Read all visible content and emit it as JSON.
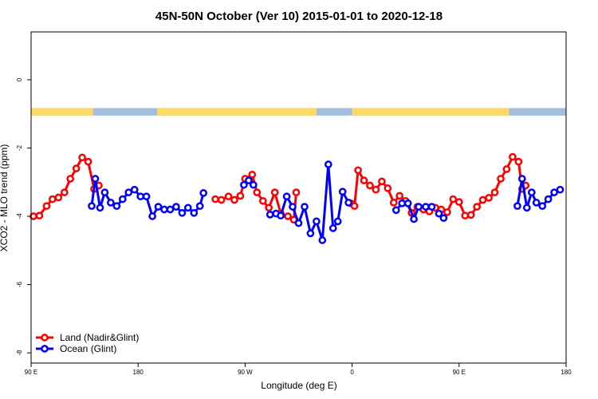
{
  "chart_data": {
    "type": "line",
    "title": "45N-50N October (Ver 10)   2015-01-01 to 2020-12-18",
    "xlabel": "Longitude (deg E)",
    "ylabel": "XCO2 - MLO trend (ppm)",
    "x_ticks": [
      {
        "value": 90,
        "label": "90 E"
      },
      {
        "value": 180,
        "label": "180"
      },
      {
        "value": 270,
        "label": "90 W"
      },
      {
        "value": 360,
        "label": "0"
      },
      {
        "value": 450,
        "label": "90 E"
      },
      {
        "value": 540,
        "label": "180"
      }
    ],
    "y_ticks": [
      {
        "value": 0,
        "label": "0"
      },
      {
        "value": -2,
        "label": "-2"
      },
      {
        "value": -4,
        "label": "-4"
      },
      {
        "value": -6,
        "label": "-6"
      },
      {
        "value": -8,
        "label": "-8"
      }
    ],
    "xlim": [
      90,
      540
    ],
    "ylim": [
      -8.3,
      1.4
    ],
    "grid": false,
    "legend_position": "bottom-left",
    "land_ocean_strip": {
      "y_range": [
        -0.83,
        -1.05
      ],
      "land_color": "#ffd966",
      "ocean_color": "#a3bde0",
      "land_segments": [
        [
          90,
          142
        ],
        [
          196,
          330
        ],
        [
          360,
          492
        ]
      ]
    },
    "series": [
      {
        "name": "Land (Nadir&Glint)",
        "color": "#ff0000",
        "segments": [
          [
            [
              92,
              -4.0
            ],
            [
              97,
              -3.98
            ],
            [
              103,
              -3.7
            ],
            [
              108,
              -3.5
            ],
            [
              113,
              -3.45
            ],
            [
              118,
              -3.3
            ],
            [
              123,
              -2.9
            ],
            [
              128,
              -2.6
            ],
            [
              133,
              -2.28
            ],
            [
              138,
              -2.4
            ],
            [
              143,
              -3.2
            ],
            [
              147,
              -3.1
            ]
          ],
          [
            [
              245,
              -3.5
            ],
            [
              250,
              -3.52
            ],
            [
              256,
              -3.42
            ],
            [
              261,
              -3.52
            ],
            [
              266,
              -3.4
            ],
            [
              270,
              -2.9
            ],
            [
              276,
              -2.78
            ],
            [
              280,
              -3.3
            ],
            [
              285,
              -3.55
            ],
            [
              290,
              -3.75
            ],
            [
              295,
              -3.3
            ],
            [
              300,
              -3.92
            ],
            [
              306,
              -4.0
            ],
            [
              311,
              -4.1
            ],
            [
              313,
              -3.3
            ]
          ],
          [
            [
              359,
              -3.62
            ],
            [
              362,
              -3.7
            ],
            [
              365,
              -2.65
            ],
            [
              370,
              -2.95
            ],
            [
              375,
              -3.1
            ],
            [
              380,
              -3.22
            ],
            [
              385,
              -2.98
            ],
            [
              390,
              -3.18
            ],
            [
              395,
              -3.6
            ],
            [
              400,
              -3.4
            ],
            [
              405,
              -3.55
            ],
            [
              410,
              -3.9
            ],
            [
              415,
              -3.72
            ],
            [
              420,
              -3.8
            ],
            [
              425,
              -3.86
            ],
            [
              430,
              -3.75
            ],
            [
              435,
              -3.8
            ],
            [
              440,
              -3.88
            ],
            [
              445,
              -3.5
            ],
            [
              450,
              -3.58
            ],
            [
              455,
              -3.98
            ],
            [
              460,
              -3.96
            ],
            [
              465,
              -3.72
            ],
            [
              470,
              -3.52
            ],
            [
              475,
              -3.46
            ],
            [
              480,
              -3.3
            ],
            [
              485,
              -2.9
            ],
            [
              490,
              -2.62
            ],
            [
              495,
              -2.26
            ],
            [
              500,
              -2.4
            ],
            [
              503,
              -3.2
            ],
            [
              506,
              -3.1
            ]
          ]
        ]
      },
      {
        "name": "Ocean (Glint)",
        "color": "#0000ff",
        "segments": [
          [
            [
              141,
              -3.7
            ],
            [
              144,
              -2.9
            ],
            [
              148,
              -3.75
            ],
            [
              152,
              -3.3
            ],
            [
              157,
              -3.6
            ],
            [
              162,
              -3.7
            ],
            [
              167,
              -3.5
            ],
            [
              172,
              -3.3
            ],
            [
              177,
              -3.22
            ],
            [
              182,
              -3.42
            ],
            [
              187,
              -3.42
            ],
            [
              192,
              -4.0
            ],
            [
              197,
              -3.72
            ],
            [
              202,
              -3.8
            ],
            [
              207,
              -3.8
            ],
            [
              212,
              -3.72
            ],
            [
              217,
              -3.9
            ],
            [
              222,
              -3.75
            ],
            [
              227,
              -3.9
            ],
            [
              232,
              -3.7
            ],
            [
              235,
              -3.32
            ]
          ],
          [
            [
              269,
              -3.08
            ],
            [
              273,
              -2.95
            ],
            [
              277,
              -3.08
            ]
          ],
          [
            [
              291,
              -3.95
            ],
            [
              296,
              -3.92
            ],
            [
              300,
              -3.98
            ],
            [
              305,
              -3.42
            ],
            [
              310,
              -3.72
            ],
            [
              315,
              -4.2
            ],
            [
              320,
              -3.72
            ],
            [
              325,
              -4.5
            ],
            [
              330,
              -4.15
            ],
            [
              335,
              -4.7
            ],
            [
              340,
              -2.48
            ],
            [
              344,
              -4.35
            ],
            [
              348,
              -4.15
            ],
            [
              352,
              -3.28
            ],
            [
              357,
              -3.6
            ]
          ],
          [
            [
              397,
              -3.82
            ],
            [
              402,
              -3.62
            ],
            [
              407,
              -3.62
            ],
            [
              412,
              -4.08
            ],
            [
              416,
              -3.72
            ],
            [
              422,
              -3.72
            ],
            [
              427,
              -3.72
            ]
          ],
          [
            [
              433,
              -3.92
            ],
            [
              437,
              -4.05
            ]
          ],
          [
            [
              499,
              -3.7
            ],
            [
              503,
              -2.9
            ],
            [
              507,
              -3.75
            ],
            [
              511,
              -3.3
            ],
            [
              515,
              -3.6
            ],
            [
              520,
              -3.7
            ],
            [
              525,
              -3.5
            ],
            [
              530,
              -3.3
            ],
            [
              535,
              -3.22
            ]
          ]
        ]
      }
    ]
  }
}
